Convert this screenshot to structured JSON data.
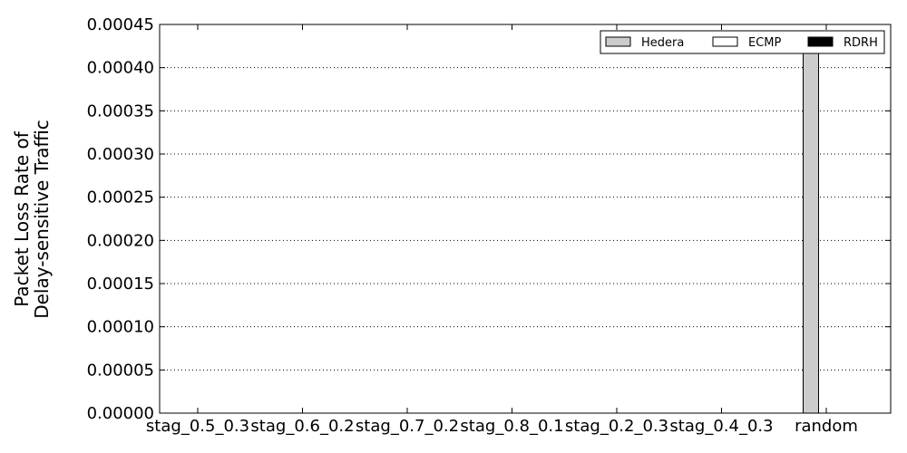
{
  "chart_data": {
    "type": "bar",
    "title": "",
    "xlabel": "",
    "ylabel_lines": [
      "Packet Loss Rate of",
      "Delay-sensitive Traffic"
    ],
    "categories": [
      "stag_0.5_0.3",
      "stag_0.6_0.2",
      "stag_0.7_0.2",
      "stag_0.8_0.1",
      "stag_0.2_0.3",
      "stag_0.4_0.3",
      "random"
    ],
    "series": [
      {
        "name": "Hedera",
        "color": "#cccccc",
        "values": [
          0,
          0,
          0,
          0,
          0,
          0,
          0.000418
        ]
      },
      {
        "name": "ECMP",
        "color": "#ffffff",
        "values": [
          0,
          0,
          0,
          0,
          0,
          0,
          0
        ]
      },
      {
        "name": "RDRH",
        "color": "#000000",
        "values": [
          0,
          0,
          0,
          0,
          0,
          0,
          0
        ]
      }
    ],
    "ylim": [
      0,
      0.00045
    ],
    "yticks": [
      "0.00000",
      "0.00005",
      "0.00010",
      "0.00015",
      "0.00020",
      "0.00025",
      "0.00030",
      "0.00035",
      "0.00040",
      "0.00045"
    ],
    "grid": true,
    "grid_style": "dotted horizontal",
    "legend_placement": "top-right"
  }
}
